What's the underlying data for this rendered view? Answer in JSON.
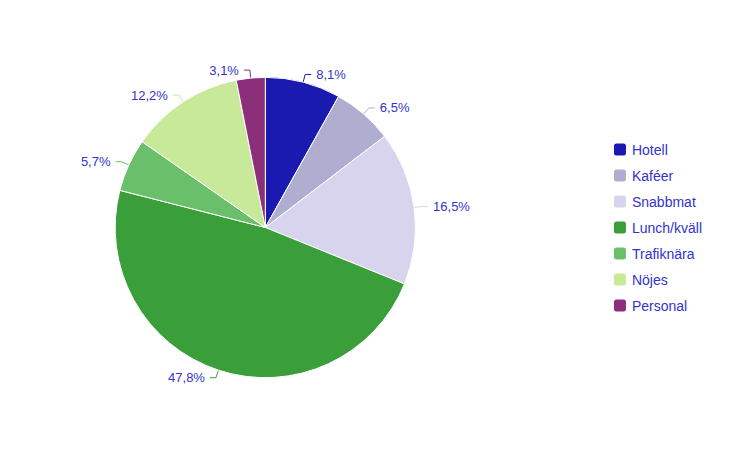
{
  "chart_data": {
    "type": "pie",
    "categories": [
      "Hotell",
      "Kaféer",
      "Snabbmat",
      "Lunch/kväll",
      "Trafiknära",
      "Nöjes",
      "Personal"
    ],
    "values": [
      8.1,
      6.5,
      16.5,
      47.8,
      5.7,
      12.2,
      3.1
    ],
    "value_labels": [
      "8,1%",
      "6,5%",
      "16,5%",
      "47,8%",
      "5,7%",
      "12,2%",
      "3,1%"
    ],
    "colors": [
      "#1a1ab0",
      "#b0aed0",
      "#d8d4ee",
      "#3a9e3a",
      "#6abf6a",
      "#c8e89a",
      "#8b2f7a"
    ],
    "data_labels": true,
    "legend": "right"
  }
}
